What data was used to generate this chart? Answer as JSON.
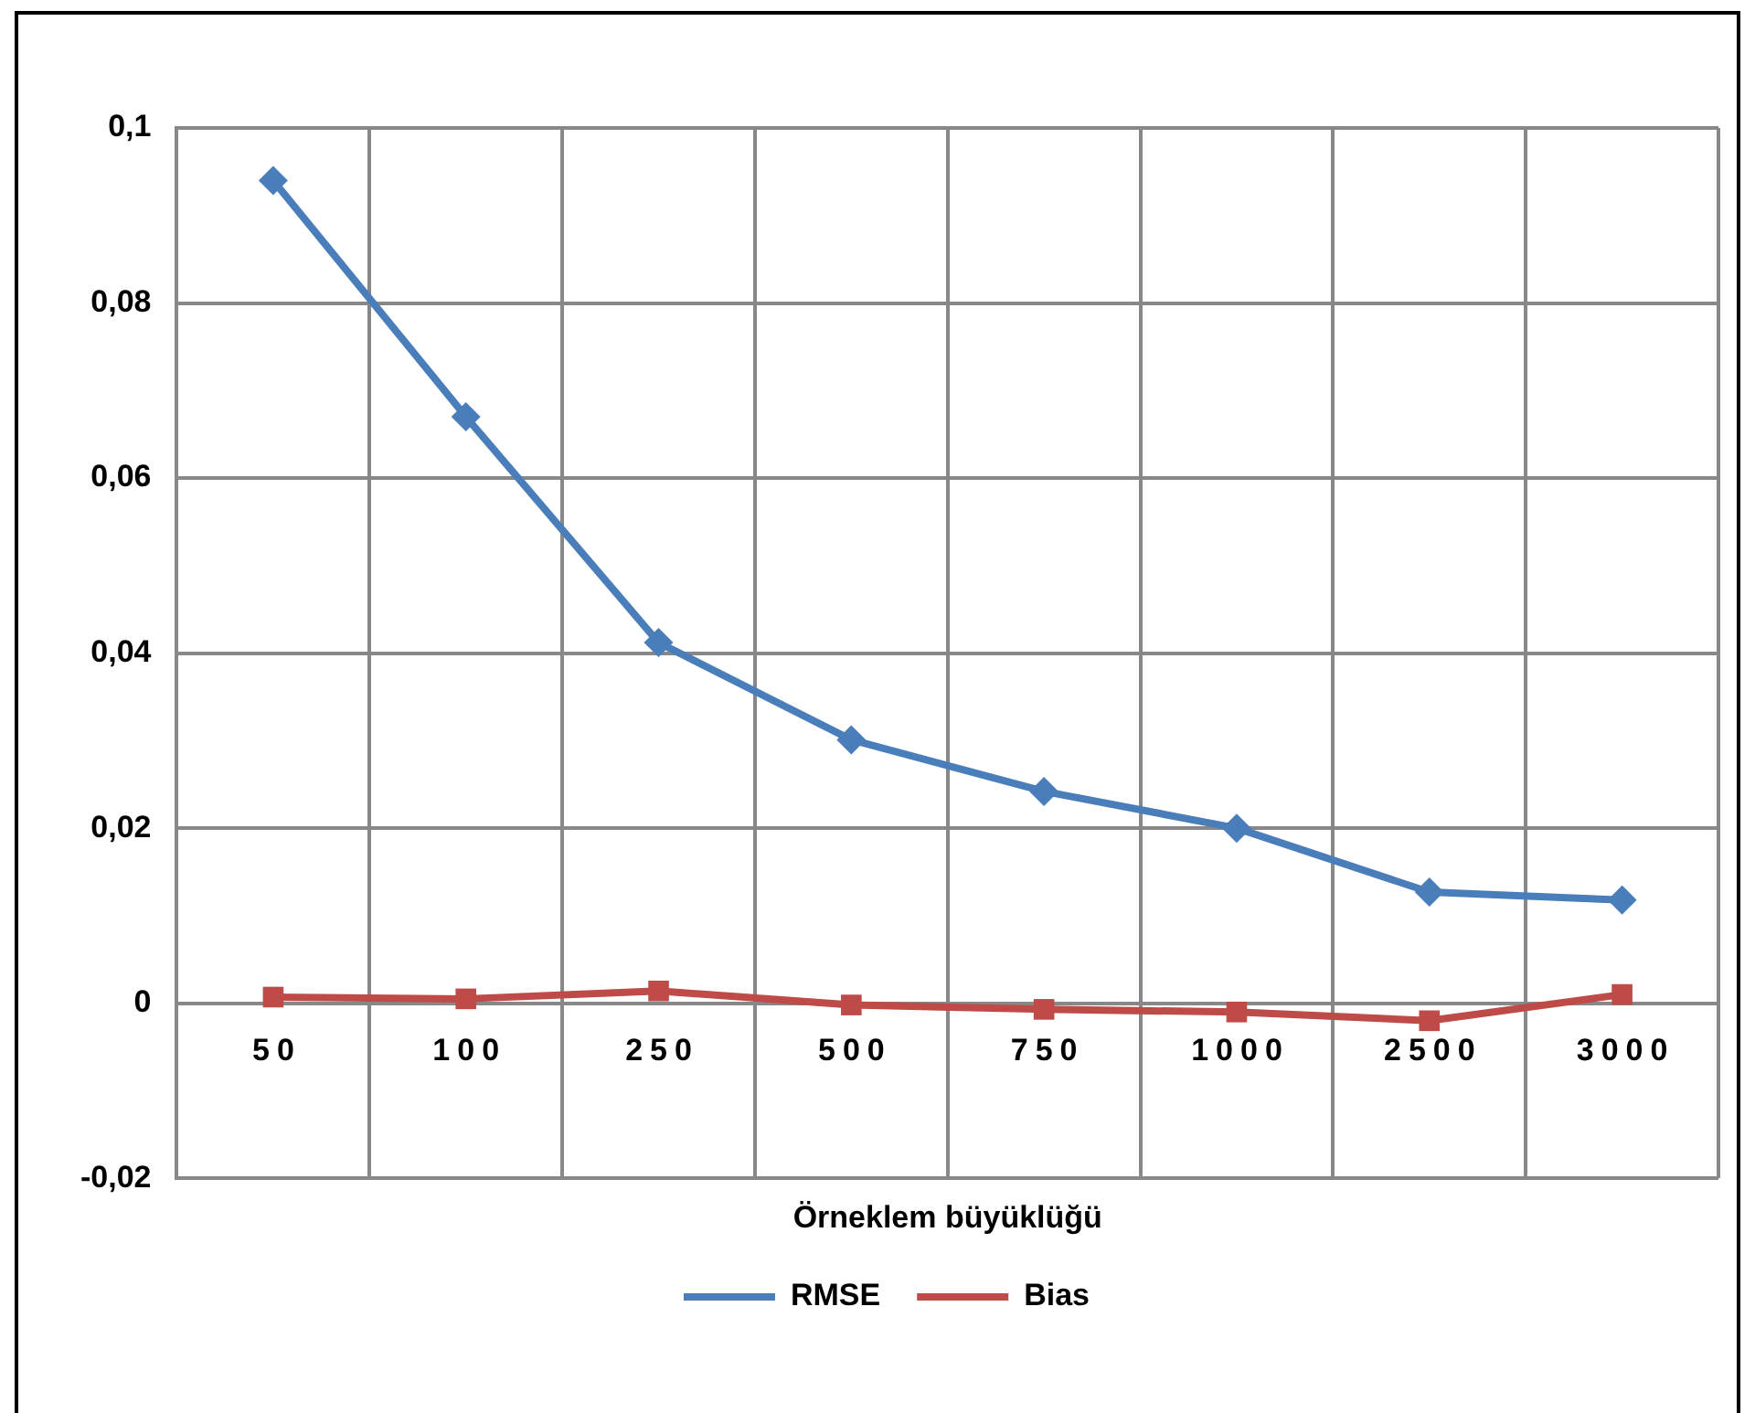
{
  "chart_data": {
    "type": "line",
    "xlabel": "Örneklem büyüklüğü",
    "categories": [
      "50",
      "100",
      "250",
      "500",
      "750",
      "1000",
      "2500",
      "3000"
    ],
    "series": [
      {
        "name": "RMSE",
        "color": "#4a7ebb",
        "marker": "diamond",
        "values": [
          0.094,
          0.067,
          0.0412,
          0.0301,
          0.0242,
          0.02,
          0.0127,
          0.0118
        ]
      },
      {
        "name": "Bias",
        "color": "#be4b48",
        "marker": "square",
        "values": [
          0.0007,
          0.0005,
          0.0014,
          -0.0002,
          -0.0007,
          -0.001,
          -0.002,
          0.001
        ]
      }
    ],
    "ylim": [
      -0.02,
      0.1
    ],
    "yticks": [
      {
        "value": -0.02,
        "label": "-0,02"
      },
      {
        "value": 0,
        "label": "0"
      },
      {
        "value": 0.02,
        "label": "0,02"
      },
      {
        "value": 0.04,
        "label": "0,04"
      },
      {
        "value": 0.06,
        "label": "0,06"
      },
      {
        "value": 0.08,
        "label": "0,08"
      },
      {
        "value": 0.1,
        "label": "0,1"
      }
    ],
    "grid": true,
    "legend": "bottom"
  }
}
